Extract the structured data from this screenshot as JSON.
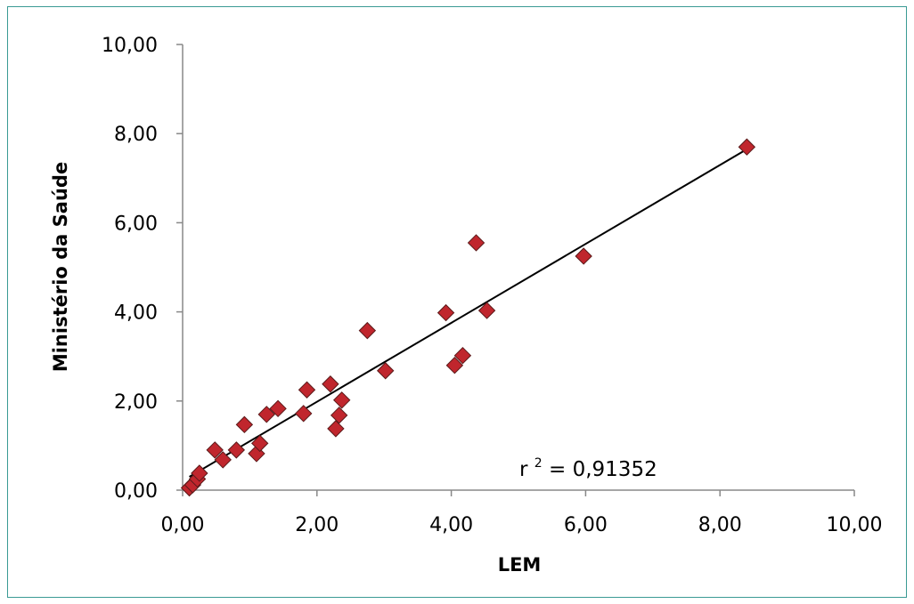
{
  "chart_data": {
    "type": "scatter",
    "xlabel": "LEM",
    "ylabel": "Ministério da  Saúde",
    "xlim": [
      0,
      10
    ],
    "ylim": [
      0,
      10
    ],
    "x_ticks": [
      "0,00",
      "2,00",
      "4,00",
      "6,00",
      "8,00",
      "10,00"
    ],
    "y_ticks": [
      "0,00",
      "2,00",
      "4,00",
      "6,00",
      "8,00",
      "10,00"
    ],
    "grid": false,
    "legend": "none",
    "annotation": {
      "prefix": "r ",
      "sup": "2",
      "suffix": " = 0,91352"
    },
    "colors": {
      "marker": "#c0262d",
      "marker_edge": "#5a1a1a",
      "trendline": "#000000",
      "axis": "#888888",
      "frame": "#3a9a94"
    },
    "trendline": {
      "x": [
        0.1,
        8.4
      ],
      "y": [
        0.3,
        7.65
      ]
    },
    "series": [
      {
        "points": [
          [
            0.1,
            0.05
          ],
          [
            0.15,
            0.12
          ],
          [
            0.22,
            0.25
          ],
          [
            0.25,
            0.38
          ],
          [
            0.48,
            0.9
          ],
          [
            0.6,
            0.68
          ],
          [
            0.8,
            0.9
          ],
          [
            0.92,
            1.47
          ],
          [
            1.1,
            0.82
          ],
          [
            1.15,
            1.05
          ],
          [
            1.25,
            1.7
          ],
          [
            1.42,
            1.83
          ],
          [
            1.8,
            1.72
          ],
          [
            1.85,
            2.25
          ],
          [
            2.2,
            2.38
          ],
          [
            2.28,
            1.38
          ],
          [
            2.33,
            1.68
          ],
          [
            2.37,
            2.02
          ],
          [
            2.75,
            3.58
          ],
          [
            3.02,
            2.68
          ],
          [
            3.92,
            3.98
          ],
          [
            4.05,
            2.8
          ],
          [
            4.17,
            3.02
          ],
          [
            4.37,
            5.55
          ],
          [
            4.53,
            4.03
          ],
          [
            5.97,
            5.25
          ],
          [
            8.4,
            7.7
          ]
        ]
      }
    ]
  }
}
